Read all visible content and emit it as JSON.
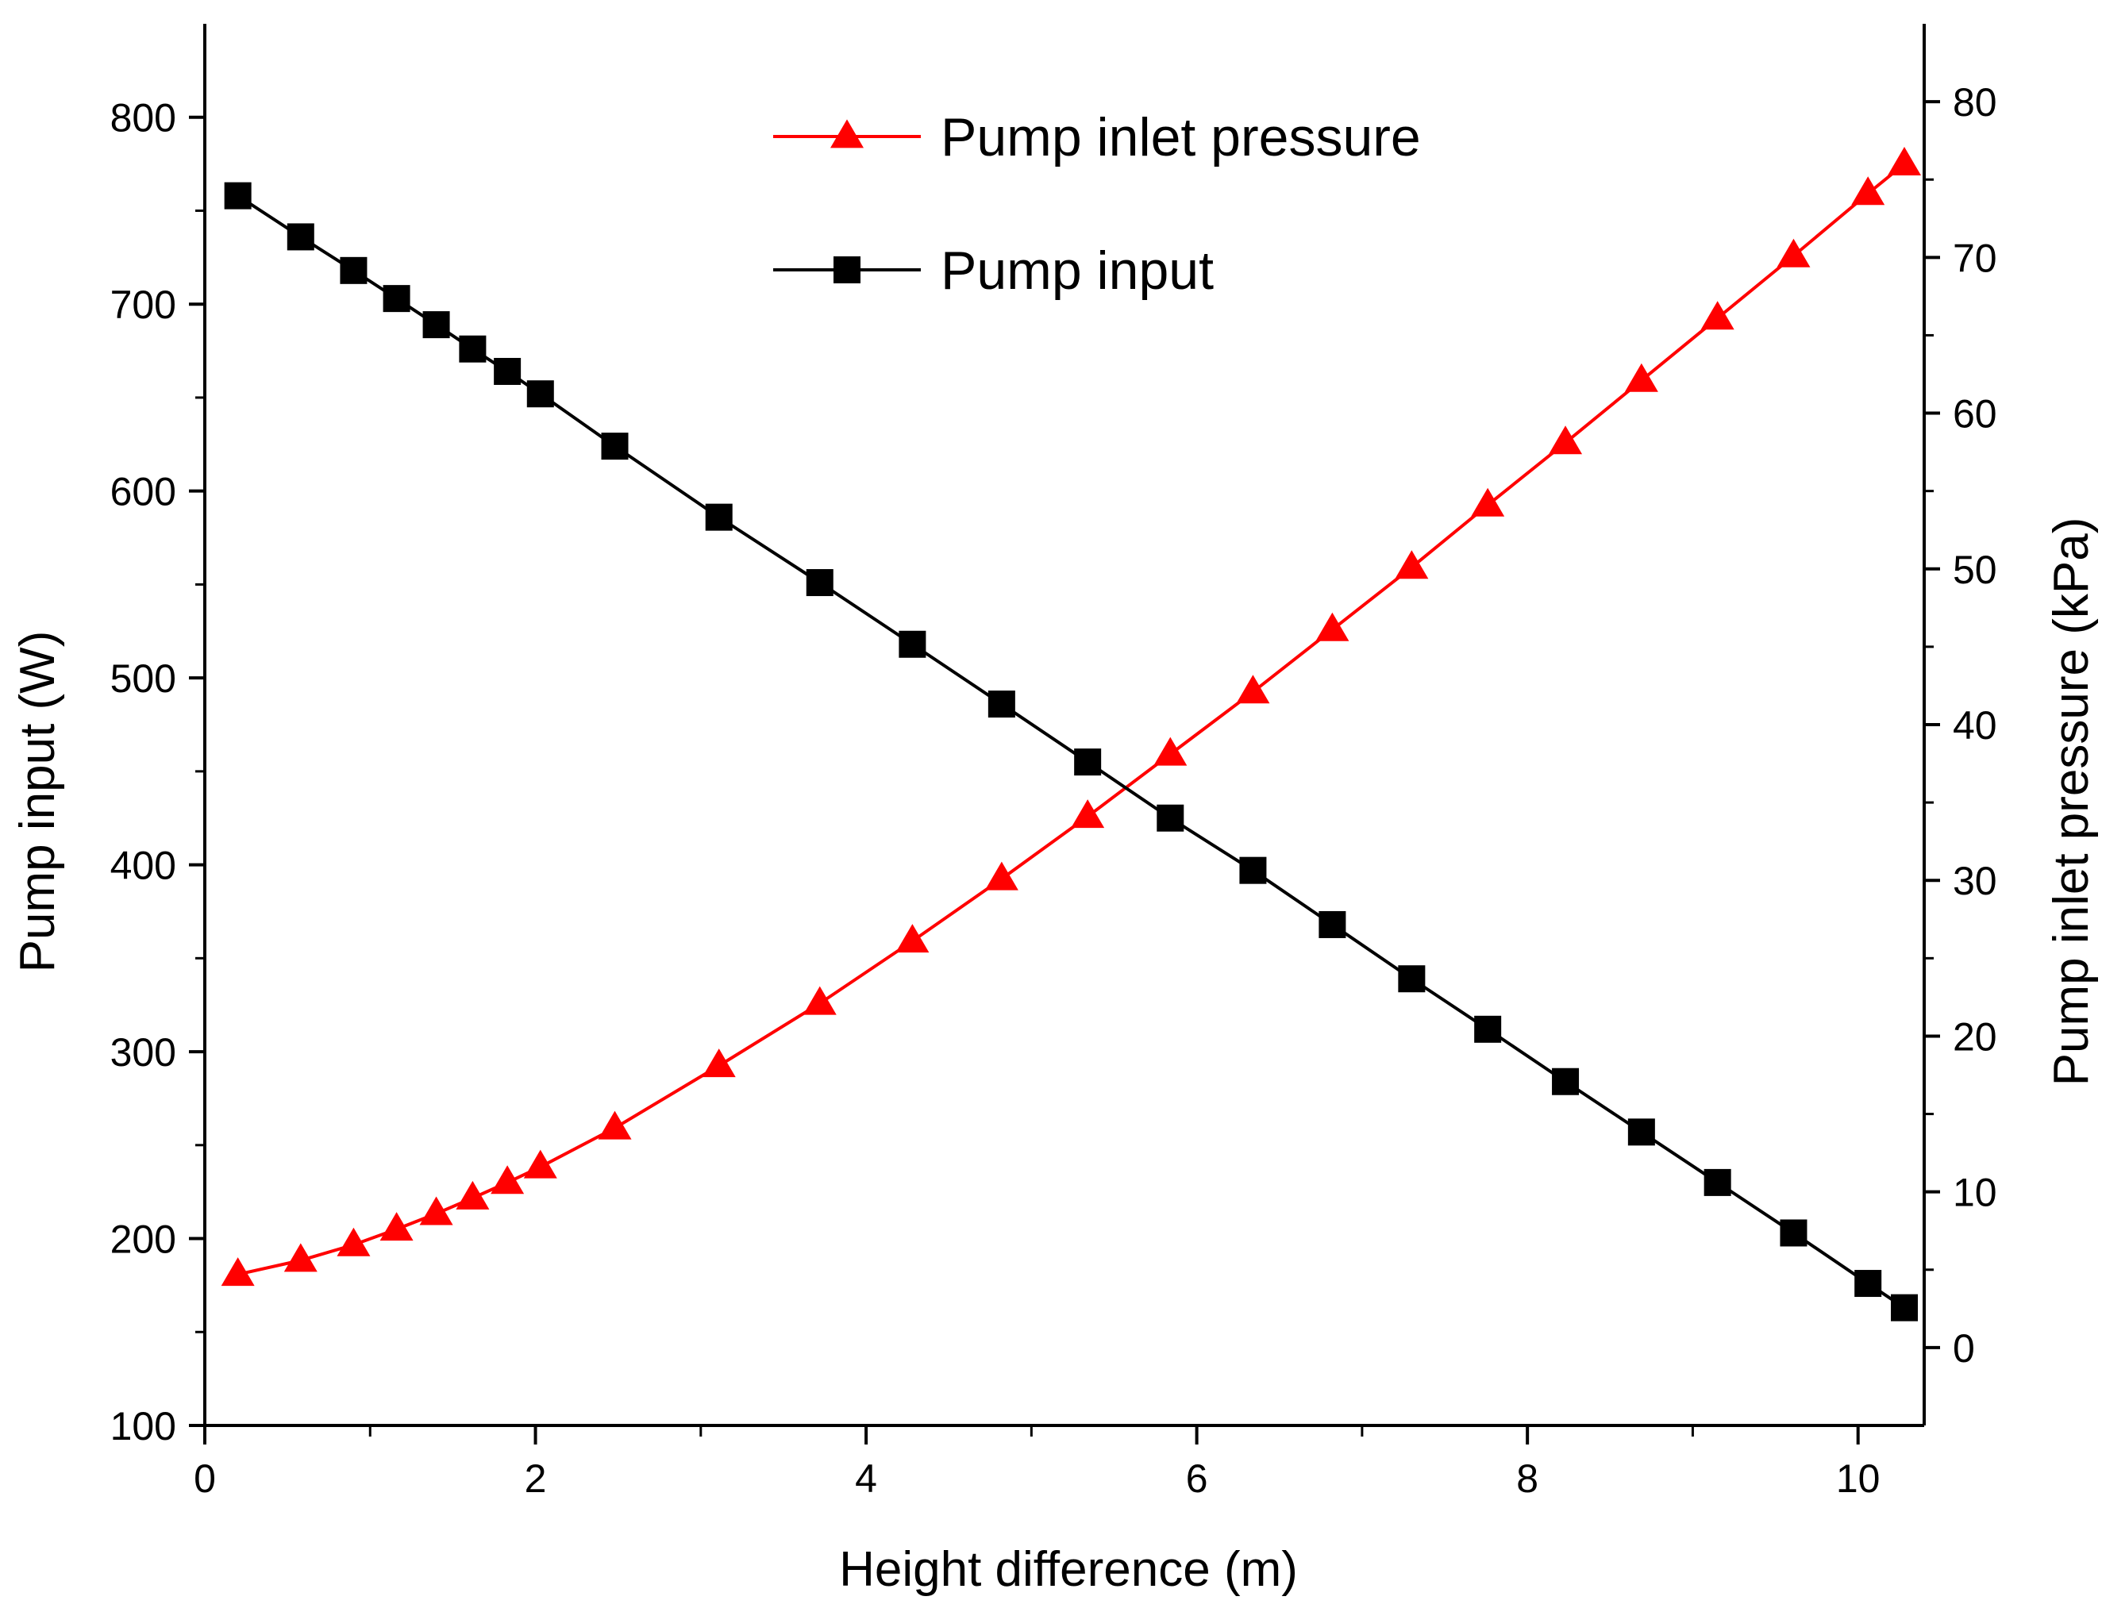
{
  "chart_data": {
    "type": "line",
    "title": "",
    "xlabel": "Height difference (m)",
    "ylabel": "Pump input (W)",
    "y2label": "Pump inlet pressure (kPa)",
    "xlim": [
      0,
      10.4
    ],
    "ylim": [
      100,
      850
    ],
    "y2lim": [
      -5,
      85
    ],
    "xticks": [
      "0",
      "2",
      "4",
      "6",
      "8",
      "10"
    ],
    "yticks": [
      "100",
      "200",
      "300",
      "400",
      "500",
      "600",
      "700",
      "800"
    ],
    "y2ticks": [
      "0",
      "10",
      "20",
      "30",
      "40",
      "50",
      "60",
      "70",
      "80"
    ],
    "grid": false,
    "legend_position": "top-center",
    "series": [
      {
        "name": "Pump inlet pressure",
        "axis": "right",
        "color": "#ff0000",
        "marker": "triangle",
        "x": [
          0.2,
          0.58,
          0.9,
          1.16,
          1.4,
          1.62,
          1.83,
          2.03,
          2.48,
          3.11,
          3.72,
          4.28,
          4.82,
          5.34,
          5.84,
          6.34,
          6.82,
          7.3,
          7.76,
          8.23,
          8.69,
          9.15,
          9.61,
          10.06,
          10.28
        ],
        "values": [
          4.7,
          5.6,
          6.6,
          7.6,
          8.6,
          9.6,
          10.6,
          11.6,
          14.1,
          18.1,
          22.1,
          26.1,
          30.1,
          34.1,
          38.1,
          42.1,
          46.1,
          50.1,
          54.1,
          58.1,
          62.1,
          66.1,
          70.1,
          74.1,
          76.0
        ]
      },
      {
        "name": "Pump input",
        "axis": "left",
        "color": "#000000",
        "marker": "square",
        "x": [
          0.2,
          0.58,
          0.9,
          1.16,
          1.4,
          1.62,
          1.83,
          2.03,
          2.48,
          3.11,
          3.72,
          4.28,
          4.82,
          5.34,
          5.84,
          6.34,
          6.82,
          7.3,
          7.76,
          8.23,
          8.69,
          9.15,
          9.61,
          10.06,
          10.28
        ],
        "values": [
          758,
          736,
          718,
          703,
          689,
          676,
          664,
          652,
          624,
          586,
          551,
          518,
          486,
          455,
          425,
          397,
          368,
          339,
          312,
          284,
          257,
          230,
          203,
          176,
          163
        ]
      }
    ]
  }
}
